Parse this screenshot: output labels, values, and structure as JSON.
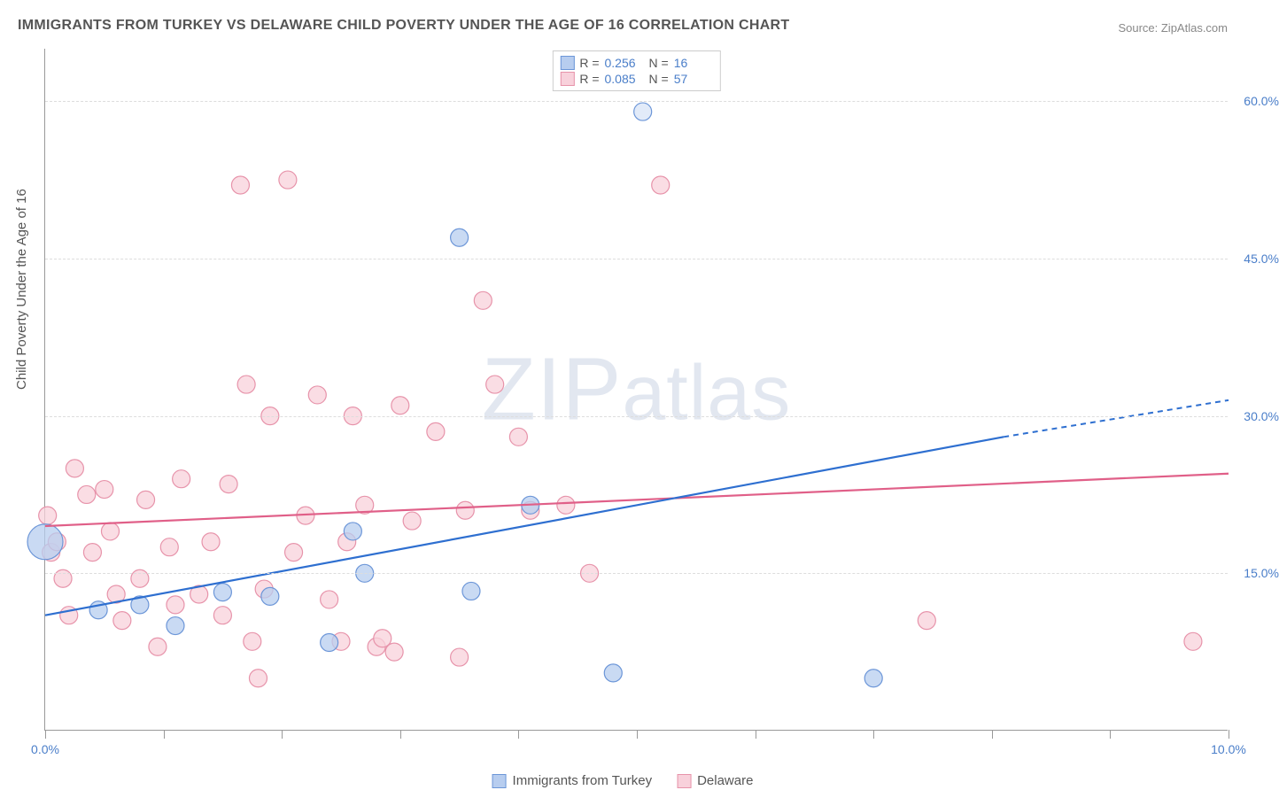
{
  "title": "IMMIGRANTS FROM TURKEY VS DELAWARE CHILD POVERTY UNDER THE AGE OF 16 CORRELATION CHART",
  "source_prefix": "Source: ",
  "source_name": "ZipAtlas.com",
  "watermark": "ZIPatlas",
  "ylabel": "Child Poverty Under the Age of 16",
  "chart": {
    "type": "scatter",
    "xlim": [
      0,
      10
    ],
    "ylim": [
      0,
      65
    ],
    "x_ticks": [
      0,
      1,
      2,
      3,
      4,
      5,
      6,
      7,
      8,
      9,
      10
    ],
    "x_tick_labels": {
      "0": "0.0%",
      "10": "10.0%"
    },
    "y_ticks": [
      15,
      30,
      45,
      60
    ],
    "y_tick_labels": [
      "15.0%",
      "30.0%",
      "45.0%",
      "60.0%"
    ],
    "background_color": "#ffffff",
    "grid_color": "#dddddd",
    "axis_color": "#999999",
    "tick_label_color": "#4a7ec9",
    "marker_radius": 10,
    "marker_stroke_width": 1.2,
    "series": [
      {
        "key": "turkey",
        "label": "Immigrants from Turkey",
        "fill": "#b7cdef",
        "stroke": "#6c96d8",
        "line_color": "#2e6fd0",
        "R": "0.256",
        "N": "16",
        "trend": {
          "x0": 0.0,
          "y0": 11.0,
          "x1": 8.1,
          "y1": 28.0,
          "x1_ext": 10.0,
          "y1_ext": 31.5
        },
        "points": [
          {
            "x": 0.0,
            "y": 18.0,
            "r": 20
          },
          {
            "x": 0.45,
            "y": 11.5
          },
          {
            "x": 0.8,
            "y": 12.0
          },
          {
            "x": 1.1,
            "y": 10.0
          },
          {
            "x": 1.5,
            "y": 13.2
          },
          {
            "x": 1.9,
            "y": 12.8
          },
          {
            "x": 2.4,
            "y": 8.4
          },
          {
            "x": 2.6,
            "y": 19.0
          },
          {
            "x": 2.7,
            "y": 15.0
          },
          {
            "x": 3.5,
            "y": 47.0
          },
          {
            "x": 3.6,
            "y": 13.3
          },
          {
            "x": 4.1,
            "y": 21.5
          },
          {
            "x": 4.8,
            "y": 5.5
          },
          {
            "x": 5.05,
            "y": 59.0,
            "opacity": 0.4
          },
          {
            "x": 7.0,
            "y": 5.0
          }
        ]
      },
      {
        "key": "delaware",
        "label": "Delaware",
        "fill": "#f8d1db",
        "stroke": "#e793aa",
        "line_color": "#e05f88",
        "R": "0.085",
        "N": "57",
        "trend": {
          "x0": 0.0,
          "y0": 19.5,
          "x1": 10.0,
          "y1": 24.5
        },
        "points": [
          {
            "x": 0.02,
            "y": 20.5
          },
          {
            "x": 0.05,
            "y": 17.0
          },
          {
            "x": 0.1,
            "y": 18.0
          },
          {
            "x": 0.15,
            "y": 14.5
          },
          {
            "x": 0.2,
            "y": 11.0
          },
          {
            "x": 0.25,
            "y": 25.0
          },
          {
            "x": 0.35,
            "y": 22.5
          },
          {
            "x": 0.4,
            "y": 17.0
          },
          {
            "x": 0.5,
            "y": 23.0
          },
          {
            "x": 0.55,
            "y": 19.0
          },
          {
            "x": 0.6,
            "y": 13.0
          },
          {
            "x": 0.65,
            "y": 10.5
          },
          {
            "x": 0.8,
            "y": 14.5
          },
          {
            "x": 0.85,
            "y": 22.0
          },
          {
            "x": 0.95,
            "y": 8.0
          },
          {
            "x": 1.05,
            "y": 17.5
          },
          {
            "x": 1.1,
            "y": 12.0
          },
          {
            "x": 1.15,
            "y": 24.0
          },
          {
            "x": 1.3,
            "y": 13.0
          },
          {
            "x": 1.4,
            "y": 18.0
          },
          {
            "x": 1.5,
            "y": 11.0
          },
          {
            "x": 1.55,
            "y": 23.5
          },
          {
            "x": 1.65,
            "y": 52.0
          },
          {
            "x": 1.7,
            "y": 33.0
          },
          {
            "x": 1.75,
            "y": 8.5
          },
          {
            "x": 1.8,
            "y": 5.0
          },
          {
            "x": 1.85,
            "y": 13.5
          },
          {
            "x": 1.9,
            "y": 30.0
          },
          {
            "x": 2.05,
            "y": 52.5
          },
          {
            "x": 2.1,
            "y": 17.0
          },
          {
            "x": 2.2,
            "y": 20.5
          },
          {
            "x": 2.3,
            "y": 32.0
          },
          {
            "x": 2.4,
            "y": 12.5
          },
          {
            "x": 2.5,
            "y": 8.5
          },
          {
            "x": 2.55,
            "y": 18.0
          },
          {
            "x": 2.6,
            "y": 30.0
          },
          {
            "x": 2.7,
            "y": 21.5
          },
          {
            "x": 2.8,
            "y": 8.0
          },
          {
            "x": 2.85,
            "y": 8.8
          },
          {
            "x": 2.95,
            "y": 7.5
          },
          {
            "x": 3.0,
            "y": 31.0
          },
          {
            "x": 3.1,
            "y": 20.0
          },
          {
            "x": 3.3,
            "y": 28.5
          },
          {
            "x": 3.5,
            "y": 7.0
          },
          {
            "x": 3.55,
            "y": 21.0
          },
          {
            "x": 3.7,
            "y": 41.0
          },
          {
            "x": 3.8,
            "y": 33.0
          },
          {
            "x": 4.0,
            "y": 28.0
          },
          {
            "x": 4.1,
            "y": 21.0
          },
          {
            "x": 4.4,
            "y": 21.5
          },
          {
            "x": 4.6,
            "y": 15.0
          },
          {
            "x": 5.2,
            "y": 52.0
          },
          {
            "x": 7.45,
            "y": 10.5
          },
          {
            "x": 9.7,
            "y": 8.5
          }
        ]
      }
    ]
  },
  "legend_terms": {
    "R": "R =",
    "N": "N ="
  }
}
